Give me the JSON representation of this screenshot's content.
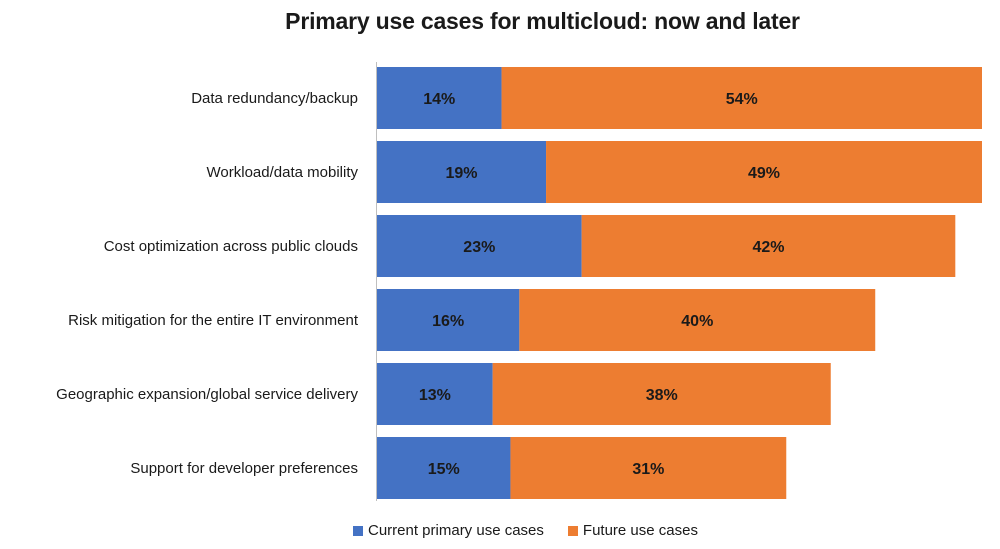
{
  "chart_data": {
    "type": "bar",
    "orientation": "horizontal",
    "stacked": true,
    "title": "Primary use cases for multicloud: now and later",
    "categories": [
      "Data redundancy/backup",
      "Workload/data mobility",
      "Cost optimization across public clouds",
      "Risk mitigation for the entire IT environment",
      "Geographic expansion/global service delivery",
      "Support for developer preferences"
    ],
    "series": [
      {
        "name": "Current primary use cases",
        "values": [
          14,
          19,
          23,
          16,
          13,
          15
        ],
        "color": "#4472C4",
        "labels": [
          "14%",
          "19%",
          "23%",
          "16%",
          "13%",
          "15%"
        ]
      },
      {
        "name": "Future use cases",
        "values": [
          54,
          49,
          42,
          40,
          38,
          31
        ],
        "color": "#ED7D31",
        "labels": [
          "54%",
          "49%",
          "42%",
          "40%",
          "38%",
          "31%"
        ]
      }
    ],
    "xlim": [
      0,
      68
    ],
    "grid": false,
    "legend_position": "bottom"
  }
}
